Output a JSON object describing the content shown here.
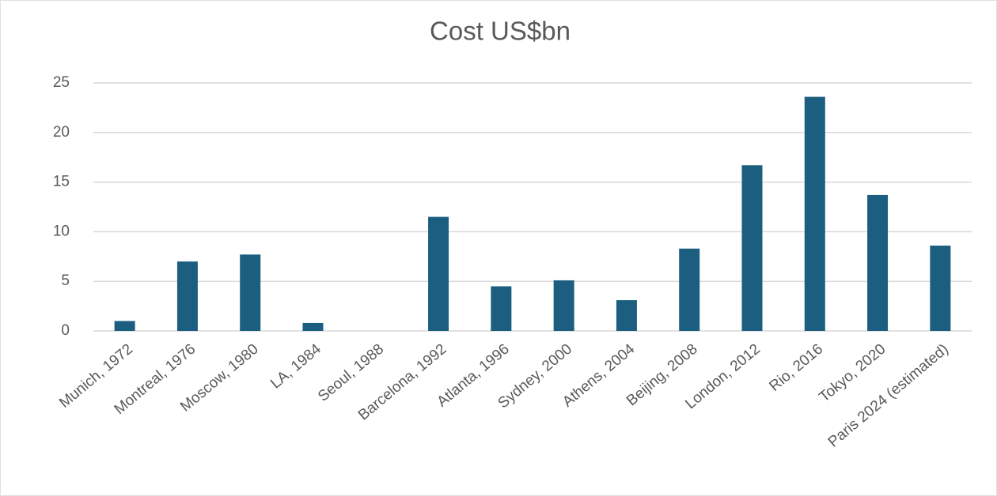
{
  "chart_data": {
    "type": "bar",
    "title": "Cost US$bn",
    "categories": [
      "Munich, 1972",
      "Montreal, 1976",
      "Moscow, 1980",
      "LA, 1984",
      "Seoul, 1988",
      "Barcelona, 1992",
      "Atlanta, 1996",
      "Sydney, 2000",
      "Athens, 2004",
      "Beijing, 2008",
      "London, 2012",
      "Rio, 2016",
      "Tokyo, 2020",
      "Paris 2024 (estimated)"
    ],
    "values": [
      1.0,
      7.0,
      7.7,
      0.8,
      0,
      11.5,
      4.5,
      5.1,
      3.1,
      8.3,
      16.7,
      23.6,
      13.7,
      8.6
    ],
    "color": "#1b5e80",
    "ylim": [
      0,
      25
    ],
    "yticks": [
      0,
      5,
      10,
      15,
      20,
      25
    ],
    "grid": true
  }
}
